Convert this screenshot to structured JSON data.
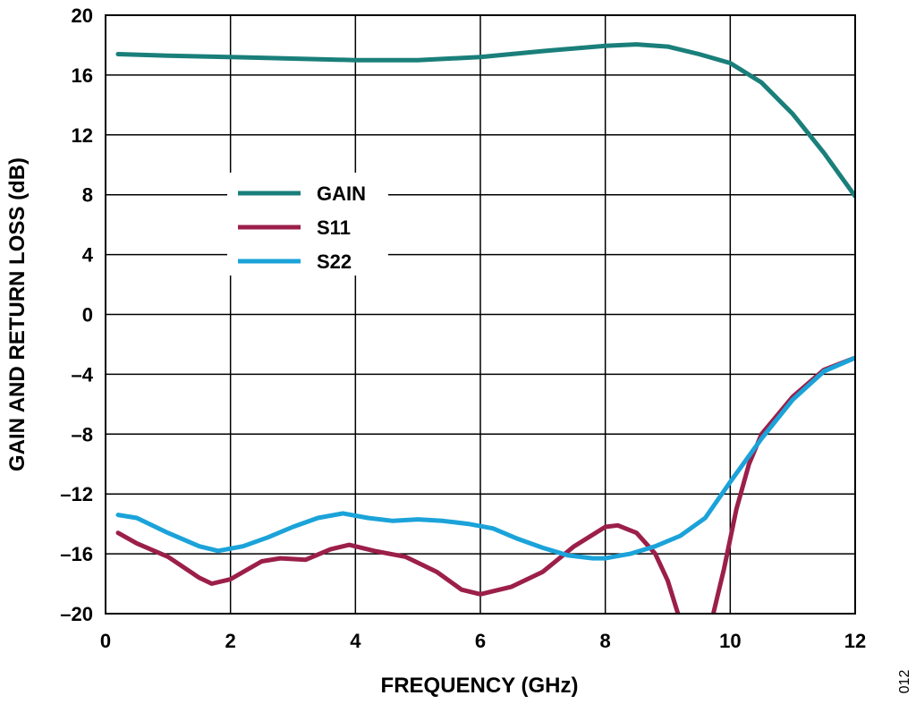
{
  "chart_data": {
    "type": "line",
    "xlabel": "FREQUENCY (GHz)",
    "ylabel": "GAIN AND RETURN LOSS (dB)",
    "xlim": [
      0,
      12
    ],
    "ylim": [
      -20,
      20
    ],
    "x_ticks": [
      0,
      2,
      4,
      6,
      8,
      10,
      12
    ],
    "y_ticks": [
      20,
      16,
      12,
      8,
      4,
      0,
      -4,
      -8,
      -12,
      -16,
      -20
    ],
    "x_tick_labels": [
      "0",
      "2",
      "4",
      "6",
      "8",
      "10",
      "12"
    ],
    "y_tick_labels": [
      "20",
      "16",
      "12",
      "8",
      "4",
      "0",
      "–4",
      "–8",
      "–12",
      "–16",
      "–20"
    ],
    "grid": true,
    "legend_position": "upper-left",
    "figure_id": "012",
    "series": [
      {
        "name": "GAIN",
        "color": "#1a7f7a",
        "x": [
          0.2,
          1,
          2,
          3,
          4,
          5,
          6,
          7,
          8,
          8.5,
          9,
          9.5,
          10,
          10.5,
          11,
          11.5,
          12
        ],
        "y": [
          17.4,
          17.3,
          17.2,
          17.1,
          17.0,
          17.0,
          17.2,
          17.6,
          17.95,
          18.05,
          17.9,
          17.4,
          16.8,
          15.5,
          13.4,
          10.8,
          7.9
        ]
      },
      {
        "name": "S11",
        "color": "#9b1f4a",
        "x": [
          0.2,
          0.5,
          1,
          1.5,
          1.7,
          2,
          2.5,
          2.8,
          3.2,
          3.6,
          3.9,
          4.3,
          4.8,
          5.3,
          5.7,
          6.0,
          6.5,
          7.0,
          7.5,
          8.0,
          8.2,
          8.5,
          8.8,
          9.0,
          9.2,
          9.7,
          9.9,
          10.1,
          10.3,
          10.5,
          11,
          11.5,
          12
        ],
        "y": [
          -14.6,
          -15.3,
          -16.2,
          -17.6,
          -18.0,
          -17.7,
          -16.5,
          -16.3,
          -16.4,
          -15.7,
          -15.4,
          -15.8,
          -16.2,
          -17.2,
          -18.4,
          -18.7,
          -18.2,
          -17.2,
          -15.5,
          -14.2,
          -14.1,
          -14.6,
          -16.0,
          -17.8,
          -20.5,
          -20.5,
          -17.0,
          -13.0,
          -10.0,
          -8.0,
          -5.5,
          -3.7,
          -2.9
        ]
      },
      {
        "name": "S22",
        "color": "#1ba3d9",
        "x": [
          0.2,
          0.5,
          1,
          1.5,
          1.8,
          2.2,
          2.6,
          3.0,
          3.4,
          3.8,
          4.2,
          4.6,
          5.0,
          5.4,
          5.8,
          6.2,
          6.6,
          7.0,
          7.4,
          7.8,
          8.0,
          8.4,
          8.8,
          9.2,
          9.6,
          10.0,
          10.5,
          11.0,
          11.5,
          12
        ],
        "y": [
          -13.4,
          -13.6,
          -14.6,
          -15.5,
          -15.8,
          -15.5,
          -14.9,
          -14.2,
          -13.6,
          -13.3,
          -13.6,
          -13.8,
          -13.7,
          -13.8,
          -14.0,
          -14.3,
          -15.0,
          -15.6,
          -16.1,
          -16.3,
          -16.3,
          -16.0,
          -15.5,
          -14.8,
          -13.6,
          -11.2,
          -8.3,
          -5.7,
          -3.8,
          -2.9
        ]
      }
    ]
  }
}
